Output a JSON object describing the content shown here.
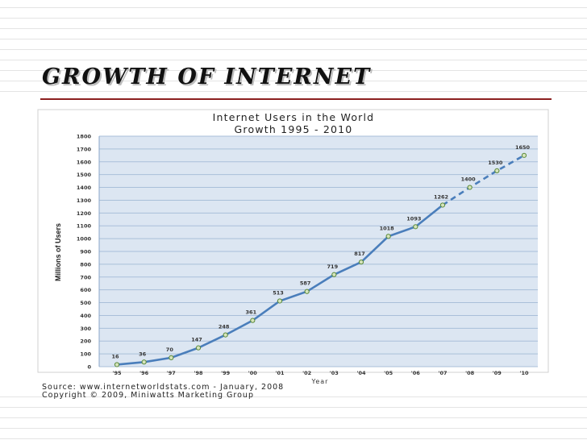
{
  "slide": {
    "title": "GROWTH OF INTERNET",
    "source_line1": "Source: www.internetworldstats.com - January, 2008",
    "source_line2": "Copyright © 2009, Miniwatts Marketing Group"
  },
  "colors": {
    "plot_bg": "#dce6f2",
    "line": "#4a7ebb",
    "marker_fill": "#d7e4bd",
    "rule": "#8c2020"
  },
  "chart_data": {
    "type": "line",
    "title": "Internet Users in the World",
    "subtitle": "Growth 1995 - 2010",
    "xlabel": "Year",
    "ylabel": "Millions of Users",
    "categories": [
      "'95",
      "'96",
      "'97",
      "'98",
      "'99",
      "'00",
      "'01",
      "'02",
      "'03",
      "'04",
      "'05",
      "'06",
      "'07",
      "'08",
      "'09",
      "'10"
    ],
    "ylim": [
      0,
      1800
    ],
    "yticks": [
      0,
      100,
      200,
      300,
      400,
      500,
      600,
      700,
      800,
      900,
      1000,
      1100,
      1200,
      1300,
      1400,
      1500,
      1600,
      1700,
      1800
    ],
    "grid": true,
    "series": [
      {
        "values": [
          16,
          36,
          70,
          147,
          248,
          361,
          513,
          587,
          719,
          817,
          1018,
          1093,
          1262,
          1400,
          1530,
          1650
        ],
        "projected_from_index": 12
      }
    ]
  }
}
